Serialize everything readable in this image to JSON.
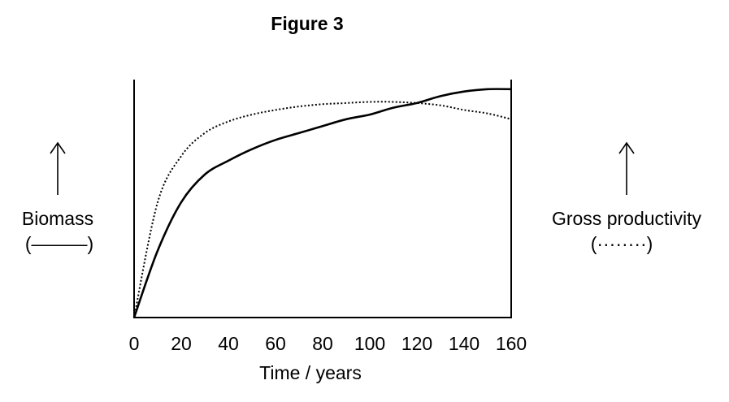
{
  "chart_data": {
    "type": "line",
    "title": "Figure 3",
    "xlabel": "Time / years",
    "xlim": [
      0,
      160
    ],
    "xticks": [
      0,
      20,
      40,
      60,
      80,
      100,
      120,
      140,
      160
    ],
    "grid": false,
    "y_axes": [
      {
        "side": "left",
        "label": "Biomass",
        "legend_symbol": "(———)",
        "arrow": "up-arrow-icon",
        "ticks": false
      },
      {
        "side": "right",
        "label": "Gross productivity",
        "legend_symbol": "(········)",
        "arrow": "up-arrow-icon",
        "ticks": false
      }
    ],
    "ylim": [
      0,
      1
    ],
    "series": [
      {
        "style": "solid",
        "axis": "left",
        "x": [
          0,
          10,
          20,
          30,
          40,
          50,
          60,
          70,
          80,
          90,
          100,
          110,
          120,
          130,
          140,
          150,
          160
        ],
        "y": [
          0,
          0.29,
          0.5,
          0.62,
          0.68,
          0.73,
          0.77,
          0.8,
          0.83,
          0.86,
          0.88,
          0.91,
          0.93,
          0.96,
          0.98,
          0.99,
          0.99
        ]
      },
      {
        "style": "dotted",
        "axis": "right",
        "x": [
          0,
          10,
          20,
          30,
          40,
          50,
          60,
          70,
          80,
          90,
          100,
          110,
          120,
          130,
          140,
          150,
          160
        ],
        "y": [
          0,
          0.5,
          0.7,
          0.8,
          0.85,
          0.88,
          0.9,
          0.915,
          0.925,
          0.93,
          0.935,
          0.935,
          0.93,
          0.92,
          0.9,
          0.885,
          0.86
        ]
      }
    ]
  }
}
